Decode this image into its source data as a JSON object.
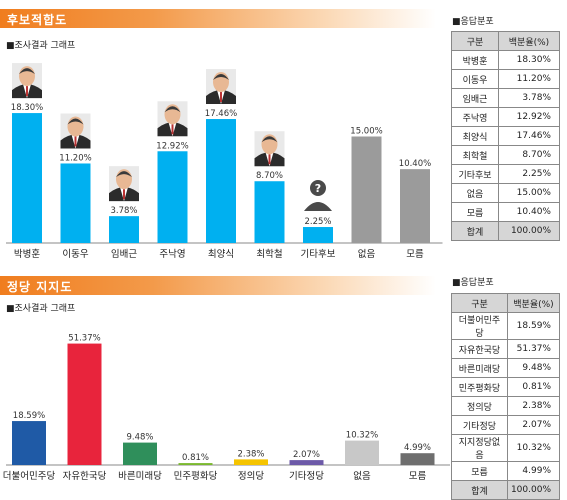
{
  "sections": [
    {
      "banner": "후보적합도",
      "subhead": "■조사결과 그래프",
      "table_title": "■응답분포",
      "table_headers": [
        "구분",
        "백분율(%)"
      ],
      "table_rows": [
        [
          "박병훈",
          "18.30%"
        ],
        [
          "이동우",
          "11.20%"
        ],
        [
          "임배근",
          "3.78%"
        ],
        [
          "주낙영",
          "12.92%"
        ],
        [
          "최양식",
          "17.46%"
        ],
        [
          "최학철",
          "8.70%"
        ],
        [
          "기타후보",
          "2.25%"
        ],
        [
          "없음",
          "15.00%"
        ],
        [
          "모름",
          "10.40%"
        ],
        [
          "합계",
          "100.00%"
        ]
      ]
    },
    {
      "banner": "정당 지지도",
      "subhead": "■조사결과 그래프",
      "table_title": "■응답분포",
      "table_headers": [
        "구분",
        "백분율(%)"
      ],
      "table_rows": [
        [
          "더불어민주당",
          "18.59%"
        ],
        [
          "자유한국당",
          "51.37%"
        ],
        [
          "바른미래당",
          "9.48%"
        ],
        [
          "민주평화당",
          "0.81%"
        ],
        [
          "정의당",
          "2.38%"
        ],
        [
          "기타정당",
          "2.07%"
        ],
        [
          "지지정당없음",
          "10.32%"
        ],
        [
          "모름",
          "4.99%"
        ],
        [
          "합계",
          "100.00%"
        ]
      ]
    }
  ],
  "chart_data": [
    {
      "type": "bar",
      "categories": [
        "박병훈",
        "이동우",
        "임배근",
        "주낙영",
        "최양식",
        "최학철",
        "기타후보",
        "없음",
        "모름"
      ],
      "values": [
        18.3,
        11.2,
        3.78,
        12.92,
        17.46,
        8.7,
        2.25,
        15.0,
        10.4
      ],
      "labels": [
        "18.30%",
        "11.20%",
        "3.78%",
        "12.92%",
        "17.46%",
        "8.70%",
        "2.25%",
        "15.00%",
        "10.40%"
      ],
      "colors": [
        "#00b0f0",
        "#00b0f0",
        "#00b0f0",
        "#00b0f0",
        "#00b0f0",
        "#00b0f0",
        "#00b0f0",
        "#9b9b9b",
        "#9b9b9b"
      ],
      "portraits": [
        true,
        true,
        true,
        true,
        true,
        true,
        false,
        false,
        false
      ],
      "placeholder_index": 6,
      "ylim": [
        0,
        20
      ],
      "grid": false
    },
    {
      "type": "bar",
      "categories": [
        "더불어민주당",
        "자유한국당",
        "바른미래당",
        "민주평화당",
        "정의당",
        "기타정당",
        "없음",
        "모름"
      ],
      "values": [
        18.59,
        51.37,
        9.48,
        0.81,
        2.38,
        2.07,
        10.32,
        4.99
      ],
      "labels": [
        "18.59%",
        "51.37%",
        "9.48%",
        "0.81%",
        "2.38%",
        "2.07%",
        "10.32%",
        "4.99%"
      ],
      "colors": [
        "#1f5aa6",
        "#e8243c",
        "#2f8f5b",
        "#7ab82e",
        "#f5c400",
        "#6d5aa8",
        "#c8c8c8",
        "#6e6e6e"
      ],
      "ylim": [
        0,
        55
      ],
      "grid": false
    }
  ]
}
